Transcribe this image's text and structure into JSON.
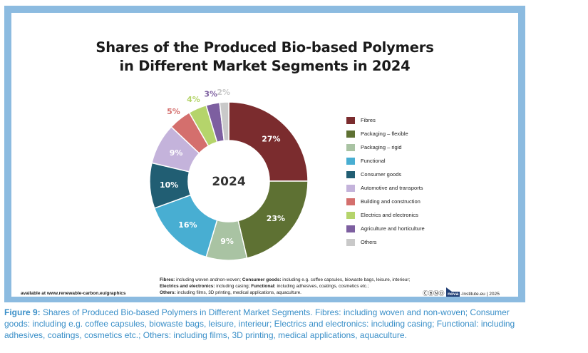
{
  "chart_data": {
    "type": "donut",
    "title_line1": "Shares of the Produced Bio-based Polymers",
    "title_line2": "in Different Market Segments in 2024",
    "center_label": "2024",
    "value_unit": "%",
    "series": [
      {
        "name": "Fibres",
        "value": 27,
        "label": "27%",
        "color": "#7b2c2e"
      },
      {
        "name": "Packaging – flexible",
        "value": 23,
        "label": "23%",
        "color": "#5e7133"
      },
      {
        "name": "Packaging – rigid",
        "value": 9,
        "label": "9%",
        "color": "#a9c3a3"
      },
      {
        "name": "Functional",
        "value": 16,
        "label": "16%",
        "color": "#48aed2"
      },
      {
        "name": "Consumer goods",
        "value": 10,
        "label": "10%",
        "color": "#215e73"
      },
      {
        "name": "Automotive and transports",
        "value": 9,
        "label": "9%",
        "color": "#c4b3db"
      },
      {
        "name": "Building and construction",
        "value": 5,
        "label": "5%",
        "color": "#d46f6d"
      },
      {
        "name": "Electrics and electronics",
        "value": 4,
        "label": "4%",
        "color": "#b5d46b"
      },
      {
        "name": "Agriculture and horticulture",
        "value": 3,
        "label": "3%",
        "color": "#7d5fa0"
      },
      {
        "name": "Others",
        "value": 2,
        "label": "2%",
        "color": "#c9c9c9"
      }
    ]
  },
  "chart_order": [
    0,
    1,
    2,
    3,
    4,
    5,
    6,
    7,
    8,
    9
  ],
  "notes": {
    "fibres_label": "Fibres:",
    "fibres_text": " including woven andnon-woven; ",
    "consumer_label": "Consumer goods:",
    "consumer_text": " including e.g. coffee capsules, biowaste bags, leisure, interieur; ",
    "electrics_label": "Electrics and electronics:",
    "electrics_text": " including casing; ",
    "functional_label": "Functional:",
    "functional_text": " including adhesives, coatings, cosmetics etc.; ",
    "others_label": "Others:",
    "others_text": " including films, 3D printing, medical applications, aquaculture."
  },
  "available_text": "available at www.renewable-carbon.eu/graphics",
  "credit": {
    "cc_icons": "ⒸⒷⓃⒹ",
    "nova": "nova",
    "suffix": "-Institute.eu | 2025"
  },
  "caption": {
    "figure": "Figure 9:",
    "text": " Shares of Produced Bio-based Polymers in Different Market Segments. Fibres: including woven and non-woven; Consumer goods: including e.g. coffee capsules, biowaste bags, leisure, interieur; Electrics and electronics: including casing; Functional: including adhesives, coatings, cosmetics etc.; Others: including films, 3D printing, medical applications, aquaculture."
  }
}
